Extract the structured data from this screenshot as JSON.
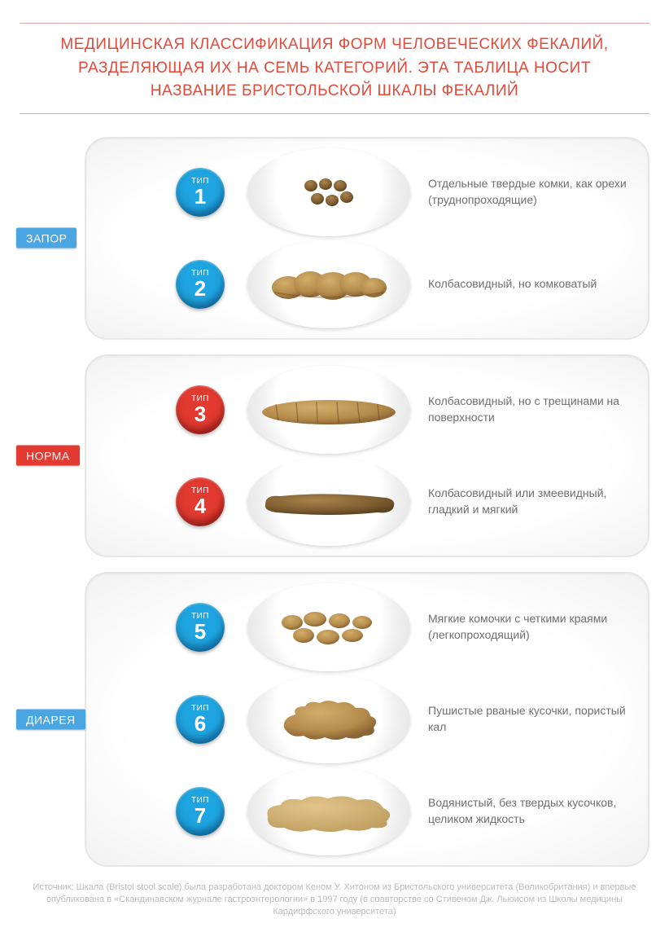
{
  "title": "МЕДИЦИНСКАЯ КЛАССИФИКАЦИЯ ФОРМ ЧЕЛОВЕЧЕСКИХ ФЕКАЛИЙ, РАЗДЕЛЯЮЩАЯ ИХ НА СЕМЬ КАТЕГОРИЙ. ЭТА ТАБЛИЦА НОСИТ НАЗВАНИЕ БРИСТОЛЬСКОЙ ШКАЛЫ ФЕКАЛИЙ",
  "colors": {
    "accent_red": "#e24a3a",
    "rule": "#e2a8a6",
    "badge_blue": "#1ea4e0",
    "badge_blue_dark": "#0b62a8",
    "badge_red": "#e23a30",
    "badge_red_dark": "#9c120c",
    "label_blue": "#4aa6e2",
    "label_red": "#e23a30",
    "panel_border": "#e6e6e6",
    "text_gray": "#6f6f6f",
    "source_gray": "#bdbdbd",
    "stool_brown": "#8a6a3a",
    "stool_brown_dark": "#5d4422",
    "stool_light": "#b98f4f",
    "stool_pale": "#c9a560"
  },
  "badge_word": "ТИП",
  "groups": [
    {
      "key": "constipation",
      "label": "ЗАПОР",
      "label_bg": "#4aa6e2",
      "badge_bg": "#1ea4e0",
      "badge_bg_dark": "#0b62a8",
      "rows": [
        {
          "n": "1",
          "desc": "Отдельные твердые комки, как орехи (труднопроходящие)",
          "img": "type1"
        },
        {
          "n": "2",
          "desc": "Колбасовидный, но комковатый",
          "img": "type2"
        }
      ]
    },
    {
      "key": "normal",
      "label": "НОРМА",
      "label_bg": "#e23a30",
      "badge_bg": "#e23a30",
      "badge_bg_dark": "#9c120c",
      "rows": [
        {
          "n": "3",
          "desc": "Колбасовидный, но с трещинами на поверхности",
          "img": "type3"
        },
        {
          "n": "4",
          "desc": "Колбасовидный или змеевидный, гладкий и мягкий",
          "img": "type4"
        }
      ]
    },
    {
      "key": "diarrhea",
      "label": "ДИАРЕЯ",
      "label_bg": "#4aa6e2",
      "badge_bg": "#1ea4e0",
      "badge_bg_dark": "#0b62a8",
      "rows": [
        {
          "n": "5",
          "desc": "Мягкие комочки с четкими краями (легкопроходящий)",
          "img": "type5"
        },
        {
          "n": "6",
          "desc": "Пушистые рваные кусочки, пористый кал",
          "img": "type6"
        },
        {
          "n": "7",
          "desc": "Водянистый, без твердых кусочков, целиком жидкость",
          "img": "type7"
        }
      ]
    }
  ],
  "source": "Источник: Шкала (Bristol stool scale) была разработана доктором Кеном У. Хитоном из Бристольского университета (Великобритания) и впервые опубликована в «Скандинавском журнале гастроэнтерологии» в 1997 году  (в соавторстве со Стивеном Дж. Льюисом из Школы медицины Кардиффского университета)"
}
